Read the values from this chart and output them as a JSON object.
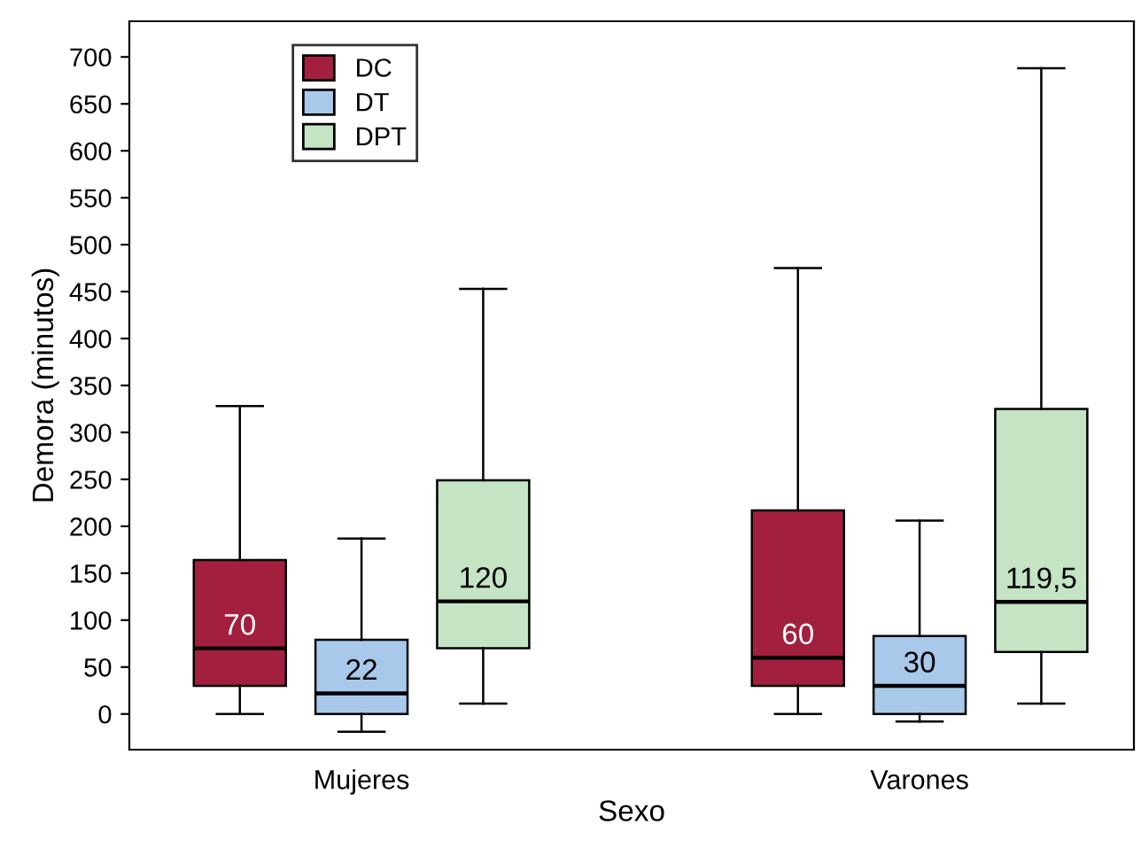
{
  "chart_data": {
    "type": "box",
    "xlabel": "Sexo",
    "ylabel": "Demora (minutos)",
    "categories": [
      "Mujeres",
      "Varones"
    ],
    "series": [
      {
        "name": "DC",
        "color": "#a31f3e",
        "boxes": [
          {
            "low": 0,
            "q1": 30,
            "median": 70,
            "q3": 164,
            "high": 328
          },
          {
            "low": 0,
            "q1": 30,
            "median": 60,
            "q3": 217,
            "high": 475
          }
        ],
        "value_labels": [
          "70",
          "60"
        ]
      },
      {
        "name": "DT",
        "color": "#a9c9ea",
        "boxes": [
          {
            "low": -19,
            "q1": 0,
            "median": 22,
            "q3": 79,
            "high": 187
          },
          {
            "low": -8,
            "q1": 0,
            "median": 30,
            "q3": 83,
            "high": 206
          }
        ],
        "value_labels": [
          "22",
          "30"
        ]
      },
      {
        "name": "DPT",
        "color": "#c4e4c4",
        "boxes": [
          {
            "low": 11,
            "q1": 70,
            "median": 120,
            "q3": 249,
            "high": 453
          },
          {
            "low": 11,
            "q1": 66,
            "median": 119.5,
            "q3": 325,
            "high": 688
          }
        ],
        "value_labels": [
          "120",
          "119,5"
        ]
      }
    ],
    "ylim": [
      -38,
      738
    ],
    "yticks": [
      0,
      50,
      100,
      150,
      200,
      250,
      300,
      350,
      400,
      450,
      500,
      550,
      600,
      650,
      700
    ],
    "grid": false,
    "legend": "top left"
  }
}
